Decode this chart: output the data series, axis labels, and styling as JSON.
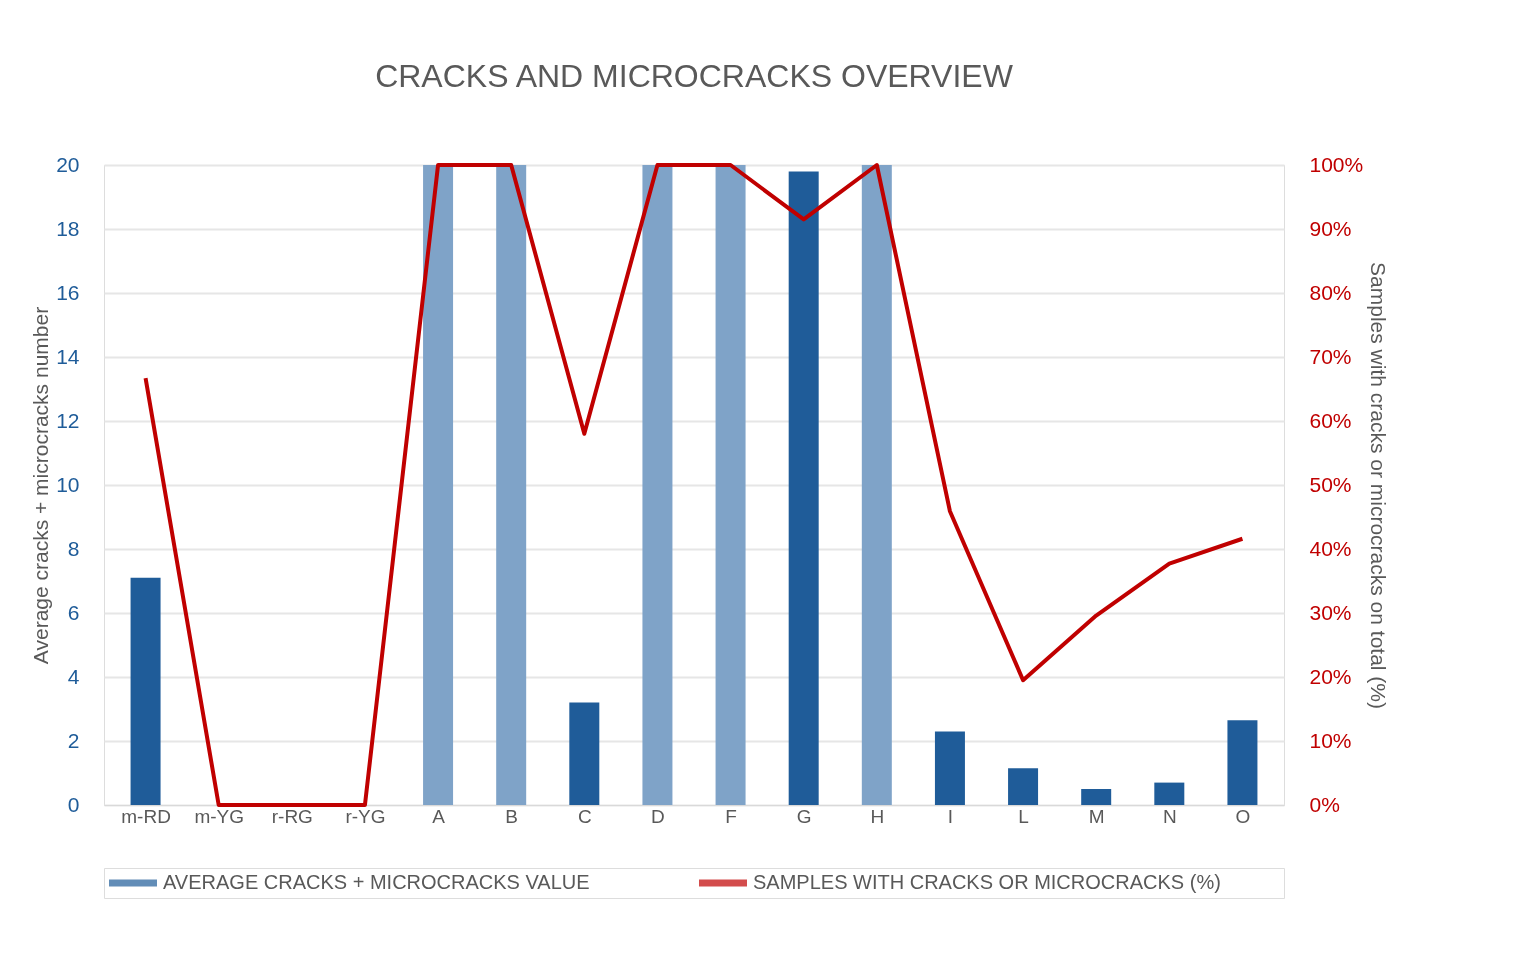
{
  "chart_data": {
    "type": "bar",
    "title": "CRACKS AND MICROCRACKS OVERVIEW",
    "categories": [
      "m-RD",
      "m-YG",
      "r-RG",
      "r-YG",
      "A",
      "B",
      "C",
      "D",
      "F",
      "G",
      "H",
      "I",
      "L",
      "M",
      "N",
      "O"
    ],
    "series": [
      {
        "name": "AVERAGE CRACKS + MICROCRACKS VALUE",
        "color": "#1f5c99",
        "colors": [
          "#1f5c99",
          "#1f5c99",
          "#1f5c99",
          "#1f5c99",
          "#7fa3c8",
          "#7fa3c8",
          "#1f5c99",
          "#7fa3c8",
          "#7fa3c8",
          "#1f5c99",
          "#7fa3c8",
          "#1f5c99",
          "#1f5c99",
          "#1f5c99",
          "#1f5c99",
          "#1f5c99"
        ],
        "values": [
          7.1,
          0,
          0,
          0,
          20,
          20,
          3.2,
          20,
          20,
          19.8,
          20,
          2.3,
          1.15,
          0.5,
          0.7,
          2.65
        ]
      },
      {
        "name": "SAMPLES WITH CRACKS OR MICROCRACKS (%)",
        "type": "line",
        "axis": "y2",
        "color": "#c00000",
        "values": [
          66.7,
          0,
          0,
          0,
          100,
          100,
          58,
          100,
          100,
          91.5,
          100,
          45.9,
          19.5,
          29.6,
          37.7,
          41.6
        ]
      }
    ],
    "ylabel": "Average cracks + microcracks number",
    "y2label": "Samples with cracks or microcracks on total (%)",
    "ylim": [
      0,
      20
    ],
    "yticks": [
      0,
      2,
      4,
      6,
      8,
      10,
      12,
      14,
      16,
      18,
      20
    ],
    "y2lim": [
      0,
      100
    ],
    "y2ticks": [
      {
        "value": 0,
        "label": "0%"
      },
      {
        "value": 10,
        "label": "10%"
      },
      {
        "value": 20,
        "label": "20%"
      },
      {
        "value": 30,
        "label": "30%"
      },
      {
        "value": 40,
        "label": "40%"
      },
      {
        "value": 50,
        "label": "50%"
      },
      {
        "value": 60,
        "label": "60%"
      },
      {
        "value": 70,
        "label": "70%"
      },
      {
        "value": 80,
        "label": "80%"
      },
      {
        "value": 90,
        "label": "90%"
      },
      {
        "value": 100,
        "label": "100%"
      }
    ],
    "grid": "y",
    "legend": "bottom",
    "marker": "none",
    "line_style": "solid"
  }
}
